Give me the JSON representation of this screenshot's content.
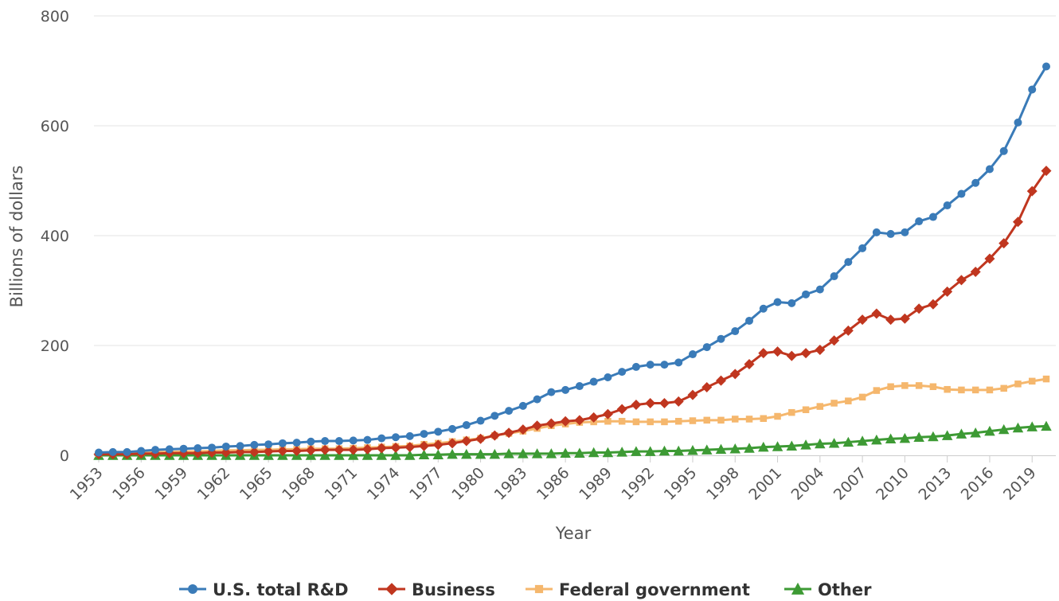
{
  "chart_data": {
    "type": "line",
    "xlabel": "Year",
    "ylabel": "Billions of dollars",
    "ylim": [
      0,
      800
    ],
    "yticks": [
      0,
      200,
      400,
      600,
      800
    ],
    "xticks": [
      1953,
      1956,
      1959,
      1962,
      1965,
      1968,
      1971,
      1974,
      1977,
      1980,
      1983,
      1986,
      1989,
      1992,
      1995,
      1998,
      2001,
      2004,
      2007,
      2010,
      2013,
      2016,
      2019
    ],
    "xlim": [
      1953,
      2020
    ],
    "grid": "horizontal",
    "legend_position": "bottom",
    "x": [
      1953,
      1954,
      1955,
      1956,
      1957,
      1958,
      1959,
      1960,
      1961,
      1962,
      1963,
      1964,
      1965,
      1966,
      1967,
      1968,
      1969,
      1970,
      1971,
      1972,
      1973,
      1974,
      1975,
      1976,
      1977,
      1978,
      1979,
      1980,
      1981,
      1982,
      1983,
      1984,
      1985,
      1986,
      1987,
      1988,
      1989,
      1990,
      1991,
      1992,
      1993,
      1994,
      1995,
      1996,
      1997,
      1998,
      1999,
      2000,
      2001,
      2002,
      2003,
      2004,
      2005,
      2006,
      2007,
      2008,
      2009,
      2010,
      2011,
      2012,
      2013,
      2014,
      2015,
      2016,
      2017,
      2018,
      2019,
      2020
    ],
    "series": [
      {
        "name": "U.S. total R&D",
        "color": "#3a7bb8",
        "marker": "circle",
        "values": [
          5,
          6,
          6,
          8,
          10,
          11,
          12,
          13,
          14,
          16,
          17,
          19,
          20,
          22,
          23,
          25,
          26,
          26,
          27,
          28,
          31,
          33,
          35,
          39,
          43,
          48,
          55,
          63,
          72,
          81,
          90,
          102,
          115,
          119,
          126,
          134,
          142,
          152,
          161,
          165,
          165,
          169,
          184,
          197,
          212,
          226,
          245,
          267,
          279,
          277,
          293,
          302,
          326,
          352,
          377,
          406,
          403,
          406,
          426,
          434,
          455,
          476,
          496,
          521,
          554,
          606,
          666,
          708
        ]
      },
      {
        "name": "Business",
        "color": "#c0361f",
        "marker": "diamond",
        "values": [
          2,
          2,
          2,
          3,
          3,
          4,
          4,
          4,
          5,
          5,
          6,
          6,
          7,
          8,
          8,
          9,
          10,
          10,
          10,
          11,
          13,
          14,
          15,
          17,
          19,
          22,
          26,
          30,
          36,
          41,
          47,
          54,
          58,
          62,
          64,
          69,
          75,
          84,
          92,
          95,
          95,
          98,
          110,
          124,
          136,
          148,
          166,
          186,
          189,
          181,
          186,
          192,
          209,
          227,
          247,
          258,
          247,
          249,
          267,
          275,
          298,
          319,
          334,
          358,
          386,
          425,
          481,
          518
        ]
      },
      {
        "name": "Federal government",
        "color": "#f5b76d",
        "marker": "square",
        "values": [
          3,
          4,
          4,
          5,
          6,
          6,
          7,
          7,
          8,
          9,
          9,
          10,
          10,
          11,
          11,
          12,
          12,
          12,
          13,
          14,
          15,
          16,
          17,
          20,
          22,
          25,
          28,
          31,
          36,
          40,
          44,
          49,
          54,
          57,
          60,
          61,
          62,
          62,
          61,
          61,
          61,
          62,
          63,
          64,
          64,
          66,
          66,
          67,
          71,
          78,
          83,
          89,
          95,
          99,
          106,
          118,
          125,
          127,
          127,
          125,
          120,
          119,
          119,
          119,
          122,
          130,
          135,
          139
        ]
      },
      {
        "name": "Other",
        "color": "#3d9a34",
        "marker": "triangle",
        "values": [
          0,
          0,
          0,
          0,
          0,
          0,
          0,
          0,
          0,
          0,
          0,
          0,
          0,
          0,
          0,
          0,
          0,
          0,
          0,
          0,
          0,
          0,
          0,
          1,
          1,
          2,
          2,
          2,
          2,
          3,
          3,
          3,
          3,
          4,
          4,
          5,
          5,
          6,
          7,
          7,
          8,
          8,
          9,
          10,
          11,
          12,
          13,
          15,
          16,
          17,
          19,
          21,
          22,
          24,
          26,
          28,
          30,
          31,
          33,
          34,
          36,
          39,
          41,
          44,
          47,
          50,
          52,
          53
        ]
      }
    ]
  }
}
